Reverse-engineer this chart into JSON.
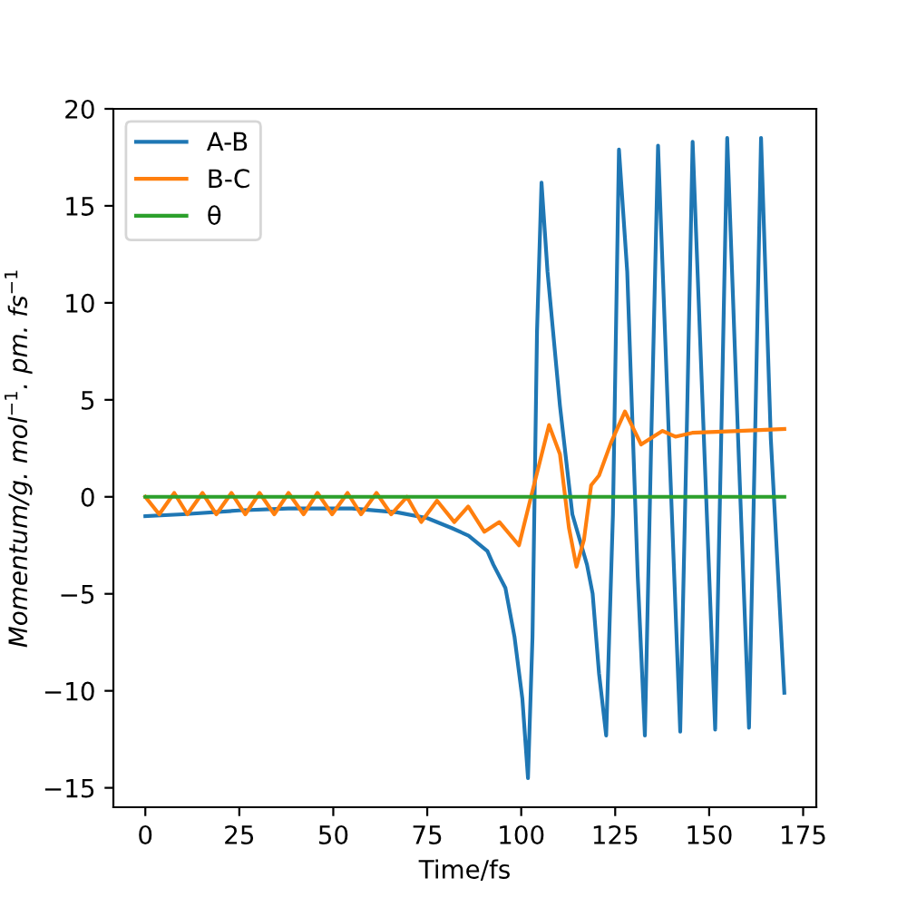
{
  "chart_data": {
    "type": "line",
    "xlabel": "Time/fs",
    "ylabel": "Momentum/g. mol$^{−1}$. pm. fs$^{−1}$",
    "xlim": [
      -8.5,
      178.5
    ],
    "ylim": [
      -16.0,
      20.0
    ],
    "xticks": [
      0,
      25,
      50,
      75,
      100,
      125,
      150,
      175
    ],
    "yticks": [
      -15,
      -10,
      -5,
      0,
      5,
      10,
      15,
      20
    ],
    "grid": false,
    "legend": "top left",
    "marker": "none",
    "line_style": "solid",
    "series": [
      {
        "name": "A-B",
        "color": "#1f77b4",
        "x": [
          0,
          10,
          25,
          38,
          55,
          67,
          75,
          81.4,
          86,
          91,
          92.6,
          95.8,
          98.2,
          100.3,
          101.8,
          103,
          104.2,
          105.4,
          107,
          110.3,
          113.6,
          117.5,
          119,
          120.7,
          122.6,
          124.4,
          126,
          128.2,
          131,
          132.9,
          134.6,
          136.4,
          139.3,
          139.9,
          142.3,
          144,
          145.6,
          148.6,
          151.6,
          153.2,
          154.8,
          157.7,
          160.6,
          162.2,
          163.8,
          166.4,
          170
        ],
        "values": [
          -1.0,
          -0.9,
          -0.7,
          -0.6,
          -0.6,
          -0.8,
          -1.1,
          -1.6,
          -2.0,
          -2.8,
          -3.5,
          -4.7,
          -7.2,
          -10.4,
          -14.5,
          -7.2,
          8.5,
          16.2,
          11.6,
          4.7,
          -0.9,
          -3.5,
          -5.0,
          -9.1,
          -12.3,
          -0.9,
          17.9,
          11.6,
          -4.1,
          -12.3,
          3.0,
          18.1,
          3.0,
          0.0,
          -12.1,
          3.0,
          18.3,
          3.0,
          -12.0,
          3.0,
          18.5,
          3.0,
          -11.9,
          3.0,
          18.5,
          3.0,
          -10.1
        ]
      },
      {
        "name": "B-C",
        "color": "#ff7f0e",
        "x": [
          0,
          3.7,
          7.7,
          11.2,
          15.2,
          18.9,
          22.9,
          26.6,
          30.4,
          34.3,
          38.1,
          42.1,
          45.8,
          49.7,
          53.8,
          57.4,
          61.5,
          65.4,
          69.6,
          73.4,
          77.6,
          82.2,
          85.9,
          90.2,
          94.2,
          99.4,
          103,
          107.4,
          110.3,
          112.7,
          114.7,
          116.7,
          118.6,
          120.7,
          123.9,
          127.6,
          131.9,
          137.6,
          141,
          145.5,
          158,
          170
        ],
        "values": [
          0,
          -0.9,
          0.2,
          -0.9,
          0.2,
          -0.9,
          0.2,
          -0.9,
          0.2,
          -0.9,
          0.2,
          -0.9,
          0.2,
          -0.9,
          0.2,
          -0.9,
          0.2,
          -0.9,
          0,
          -1.3,
          -0.2,
          -1.3,
          -0.5,
          -1.8,
          -1.3,
          -2.5,
          0.3,
          3.7,
          2.2,
          -1.6,
          -3.6,
          -2.2,
          0.6,
          1.1,
          2.8,
          4.4,
          2.7,
          3.4,
          3.1,
          3.3,
          3.4,
          3.5
        ]
      },
      {
        "name": "θ",
        "color": "#2ca02c",
        "x": [
          0,
          170
        ],
        "values": [
          0,
          0
        ]
      }
    ]
  }
}
